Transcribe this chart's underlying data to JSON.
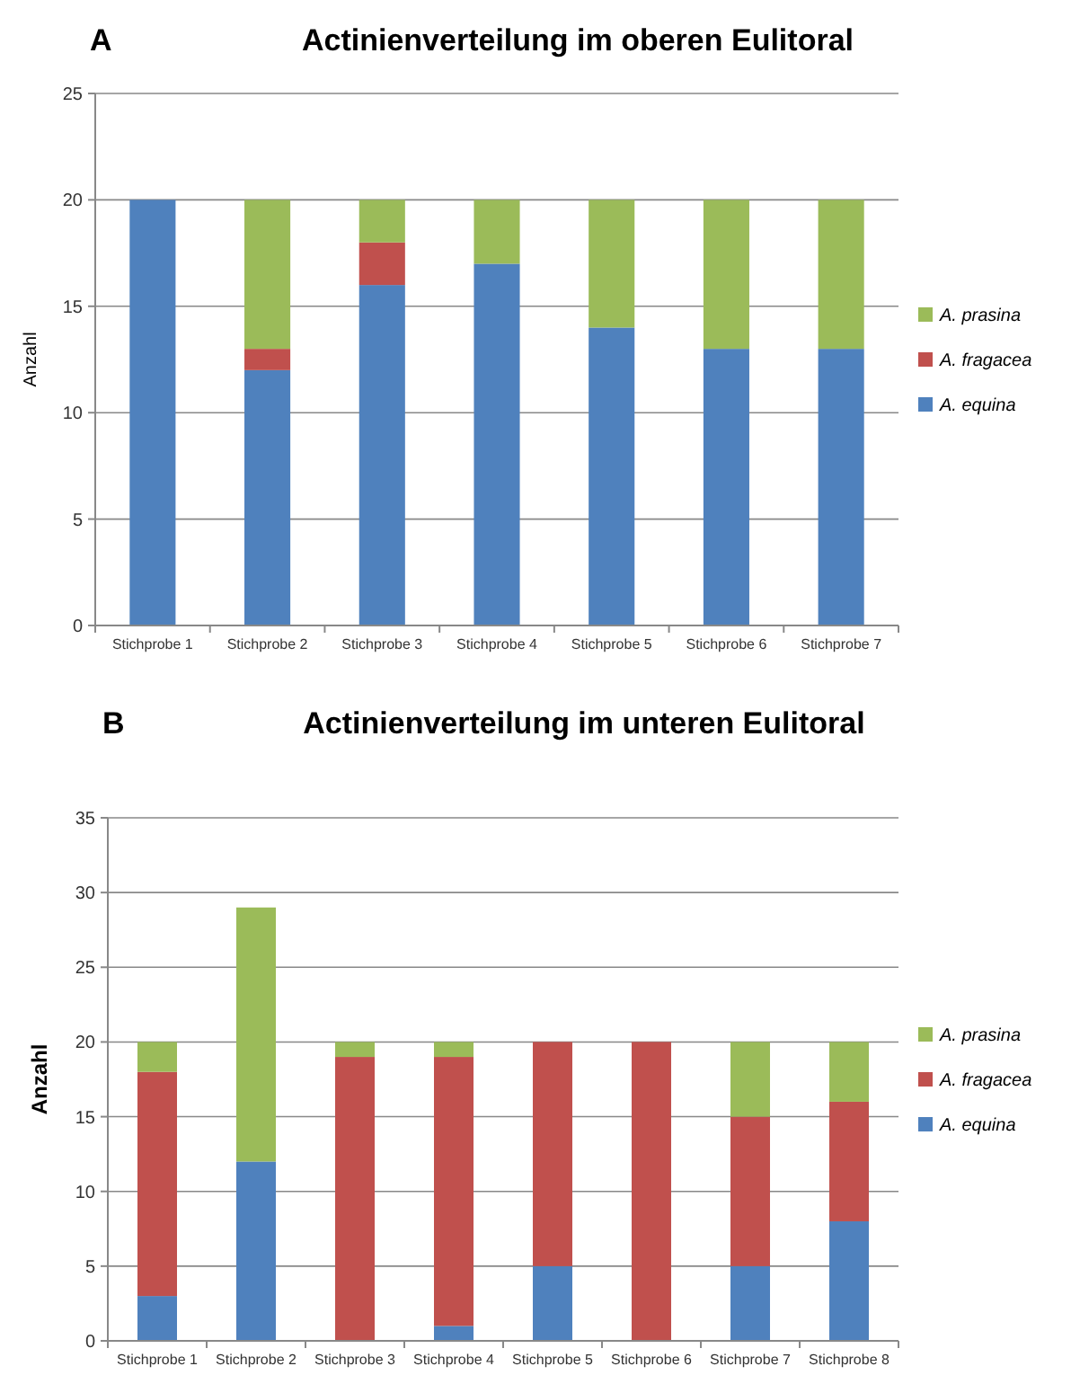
{
  "chart_data": [
    {
      "type": "bar",
      "title": "Actinienverteilung im oberen Eulitoral",
      "annotations": [
        "A"
      ],
      "ylabel": "Anzahl",
      "stacked": true,
      "grid": "y",
      "legend": "right",
      "categories": [
        "Stichprobe 1",
        "Stichprobe 2",
        "Stichprobe 3",
        "Stichprobe 4",
        "Stichprobe 5",
        "Stichprobe 6",
        "Stichprobe 7"
      ],
      "ylim": [
        0,
        25
      ],
      "yticks": [
        0,
        5,
        10,
        15,
        20,
        25
      ],
      "series": [
        {
          "name": "A. equina",
          "color": "#4f81bd",
          "values": [
            20,
            12,
            16,
            17,
            14,
            13,
            13
          ]
        },
        {
          "name": "A. fragacea",
          "color": "#c0504d",
          "values": [
            0,
            1,
            2,
            0,
            0,
            0,
            0
          ]
        },
        {
          "name": "A. prasina",
          "color": "#9bbb59",
          "values": [
            0,
            7,
            2,
            3,
            6,
            7,
            7
          ]
        }
      ]
    },
    {
      "type": "bar",
      "title": "Actinienverteilung im unteren Eulitoral",
      "annotations": [
        "B"
      ],
      "ylabel": "Anzahl",
      "stacked": true,
      "grid": "y",
      "legend": "right",
      "categories": [
        "Stichprobe 1",
        "Stichprobe 2",
        "Stichprobe 3",
        "Stichprobe 4",
        "Stichprobe 5",
        "Stichprobe 6",
        "Stichprobe 7",
        "Stichprobe 8"
      ],
      "ylim": [
        0,
        35
      ],
      "yticks": [
        0,
        5,
        10,
        15,
        20,
        25,
        30,
        35
      ],
      "series": [
        {
          "name": "A. equina",
          "color": "#4f81bd",
          "values": [
            3,
            12,
            0,
            1,
            5,
            0,
            5,
            8
          ]
        },
        {
          "name": "A. fragacea",
          "color": "#c0504d",
          "values": [
            15,
            0,
            19,
            18,
            15,
            20,
            10,
            8
          ]
        },
        {
          "name": "A. prasina",
          "color": "#9bbb59",
          "values": [
            2,
            17,
            1,
            1,
            0,
            0,
            5,
            4
          ]
        }
      ]
    }
  ]
}
